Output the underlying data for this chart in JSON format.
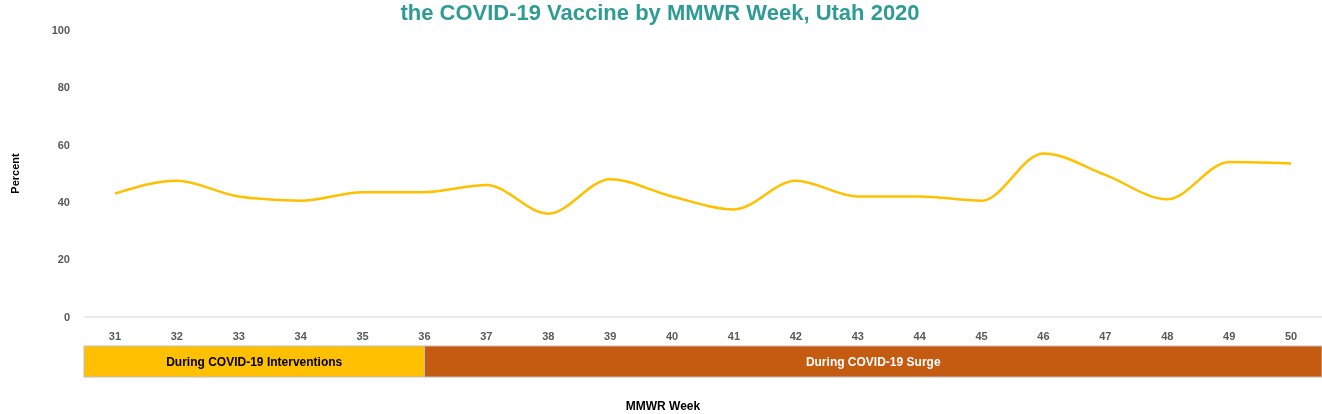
{
  "chart_data": {
    "type": "line",
    "title": "the COVID-19 Vaccine by MMWR Week, Utah 2020",
    "xlabel": "MMWR Week",
    "ylabel": "Percent",
    "categories": [
      "31",
      "32",
      "33",
      "34",
      "35",
      "36",
      "37",
      "38",
      "39",
      "40",
      "41",
      "42",
      "43",
      "44",
      "45",
      "46",
      "47",
      "48",
      "49",
      "50"
    ],
    "series": [
      {
        "color": "#ffc000",
        "values": [
          43,
          47.5,
          42,
          40.5,
          43.5,
          43.5,
          46,
          36,
          48,
          42,
          37.5,
          47.5,
          42,
          42,
          40.5,
          57,
          49.5,
          41,
          54,
          53.5
        ]
      }
    ],
    "ylim": [
      0,
      100
    ],
    "yticks": [
      0,
      20,
      40,
      60,
      80,
      100
    ],
    "grid": false,
    "marker": "none",
    "line_style": "solid",
    "annotations": [
      "During COVID-19 Interventions",
      "During COVID-19 Surge"
    ]
  }
}
